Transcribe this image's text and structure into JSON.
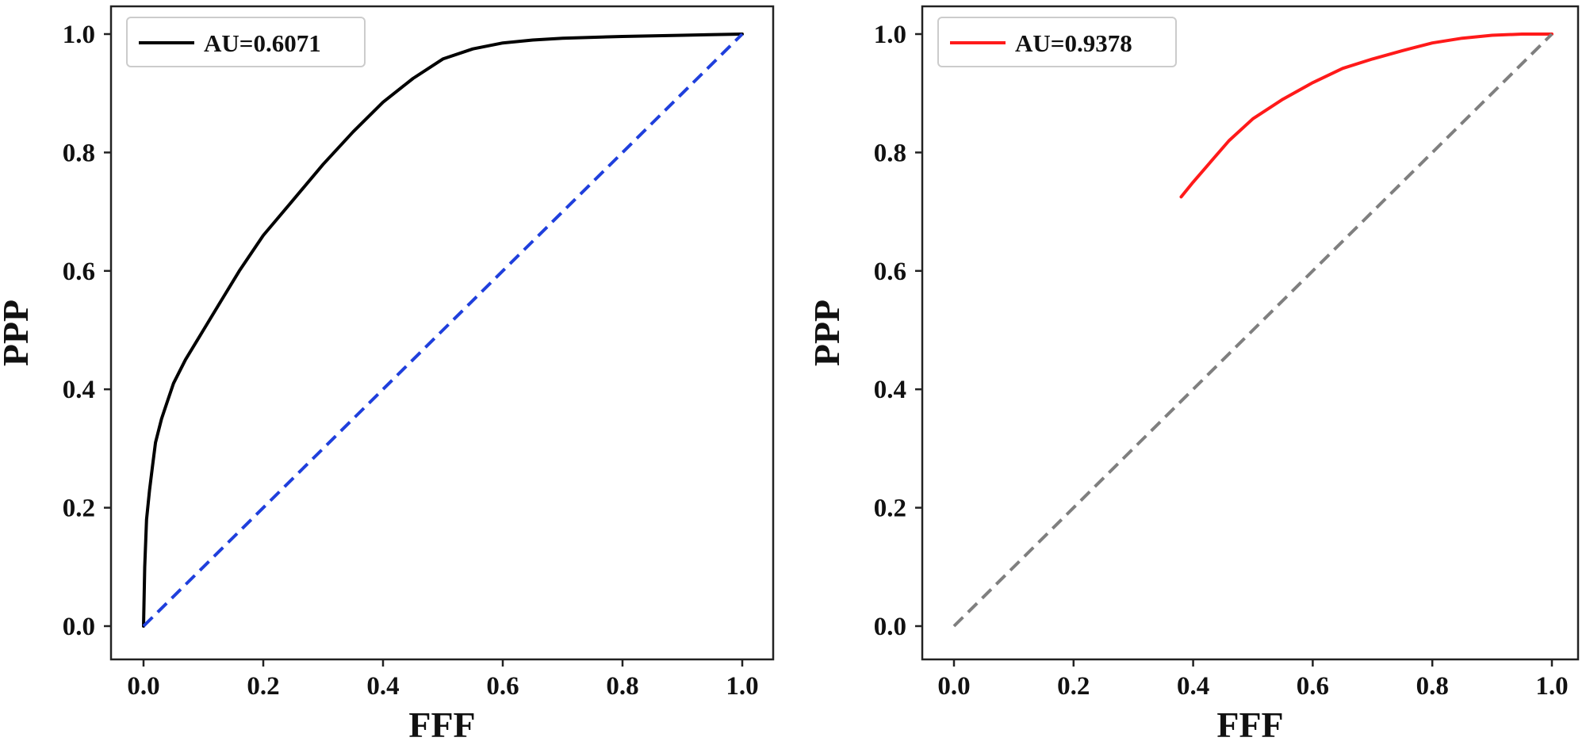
{
  "chart_data": [
    {
      "type": "line",
      "title": "",
      "xlabel": "FFF",
      "ylabel": "PPP",
      "xlim": [
        -0.05,
        1.05
      ],
      "ylim": [
        -0.05,
        1.05
      ],
      "xticks": [
        "0.0",
        "0.2",
        "0.4",
        "0.6",
        "0.8",
        "1.0"
      ],
      "yticks": [
        "0.0",
        "0.2",
        "0.4",
        "0.6",
        "0.8",
        "1.0"
      ],
      "grid": false,
      "legend_position": "top-left",
      "series": [
        {
          "name": "AU=0.6071",
          "color": "#000000",
          "style": "solid",
          "x": [
            0.0,
            0.002,
            0.005,
            0.01,
            0.015,
            0.02,
            0.03,
            0.04,
            0.05,
            0.07,
            0.1,
            0.13,
            0.16,
            0.2,
            0.25,
            0.3,
            0.35,
            0.4,
            0.45,
            0.5,
            0.55,
            0.6,
            0.65,
            0.7,
            0.8,
            0.9,
            1.0
          ],
          "y": [
            0.0,
            0.1,
            0.18,
            0.23,
            0.27,
            0.31,
            0.35,
            0.38,
            0.41,
            0.45,
            0.5,
            0.55,
            0.6,
            0.66,
            0.72,
            0.78,
            0.835,
            0.885,
            0.925,
            0.958,
            0.975,
            0.985,
            0.99,
            0.993,
            0.996,
            0.998,
            1.0
          ]
        },
        {
          "name": "",
          "color": "#1f3fdc",
          "style": "dashed",
          "x": [
            0.0,
            1.0
          ],
          "y": [
            0.0,
            1.0
          ]
        }
      ]
    },
    {
      "type": "line",
      "title": "",
      "xlabel": "FFF",
      "ylabel": "PPP",
      "xlim": [
        -0.05,
        1.05
      ],
      "ylim": [
        -0.05,
        1.05
      ],
      "xticks": [
        "0.0",
        "0.2",
        "0.4",
        "0.6",
        "0.8",
        "1.0"
      ],
      "yticks": [
        "0.0",
        "0.2",
        "0.4",
        "0.6",
        "0.8",
        "1.0"
      ],
      "grid": false,
      "legend_position": "top-left",
      "series": [
        {
          "name": "AU=0.9378",
          "color": "#ff1a1a",
          "style": "solid",
          "x": [
            0.38,
            0.4,
            0.43,
            0.46,
            0.5,
            0.55,
            0.6,
            0.65,
            0.7,
            0.75,
            0.8,
            0.85,
            0.9,
            0.95,
            1.0
          ],
          "y": [
            0.725,
            0.75,
            0.785,
            0.82,
            0.857,
            0.89,
            0.918,
            0.942,
            0.958,
            0.972,
            0.985,
            0.993,
            0.998,
            1.0,
            1.0
          ]
        },
        {
          "name": "",
          "color": "#7f7f7f",
          "style": "dashed",
          "x": [
            0.0,
            1.0
          ],
          "y": [
            0.0,
            1.0
          ]
        }
      ]
    }
  ]
}
